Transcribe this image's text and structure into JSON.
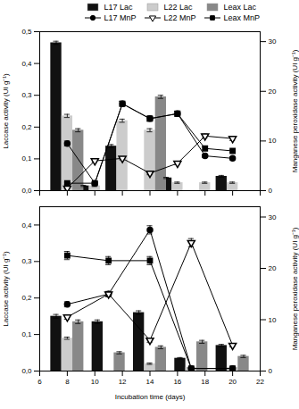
{
  "chart_data": [
    {
      "type": "bar",
      "x": [
        8,
        10,
        12,
        14,
        16,
        18,
        20
      ],
      "xlim": [
        6,
        22
      ],
      "xticks": [
        6,
        8,
        10,
        12,
        14,
        16,
        18,
        20,
        22
      ],
      "ylabel": "Laccase activity (UI g⁻¹)",
      "y2label": "Manganese peroxidase activity (UI g⁻¹)",
      "ylim": [
        0.0,
        0.5
      ],
      "yticks": [
        {
          "value": 0.0,
          "label": "0,0"
        },
        {
          "value": 0.1,
          "label": "0,1"
        },
        {
          "value": 0.2,
          "label": "0,2"
        },
        {
          "value": 0.3,
          "label": "0,3"
        },
        {
          "value": 0.4,
          "label": "0,4"
        },
        {
          "value": 0.5,
          "label": "0,5"
        }
      ],
      "y2lim": [
        0,
        32
      ],
      "y2ticks": [
        0,
        10,
        20,
        30
      ],
      "tick_labels": "y",
      "legend": "upper right",
      "series": [
        {
          "name": "L17 Lac",
          "type": "bar",
          "color": "#111111",
          "values": [
            0.465,
            0.015,
            0.14,
            0.0,
            0.04,
            0.0,
            0.045
          ],
          "errors": [
            0.005,
            0.002,
            0.005,
            0.0,
            0.002,
            0.0,
            0.003
          ]
        },
        {
          "name": "L22 Lac",
          "type": "bar",
          "color": "#cccccc",
          "values": [
            0.235,
            0.015,
            0.22,
            0.19,
            0.025,
            0.025,
            0.025
          ],
          "errors": [
            0.005,
            0.002,
            0.005,
            0.005,
            0.002,
            0.002,
            0.002
          ]
        },
        {
          "name": "Leax Lac",
          "type": "bar",
          "color": "#888888",
          "values": [
            0.19,
            0.0,
            0.0,
            0.295,
            0.0,
            0.0,
            0.0
          ],
          "errors": [
            0.005,
            0.0,
            0.0,
            0.005,
            0.0,
            0.0,
            0.0
          ]
        },
        {
          "name": "L17 MnP",
          "type": "line",
          "axis": "y2",
          "color": "black",
          "marker": "circle",
          "values": [
            9.5,
            1.5,
            17.5,
            14.5,
            15.5,
            7.0,
            6.5
          ],
          "errors": [
            0.5,
            0.2,
            0.5,
            0.5,
            0.5,
            0.3,
            0.3
          ]
        },
        {
          "name": "L22 MnP",
          "type": "line",
          "axis": "y2",
          "color": "black",
          "marker": "triangle-down-open",
          "values": [
            0.5,
            6.0,
            6.5,
            3.5,
            5.5,
            11.0,
            10.5
          ],
          "errors": [
            0.2,
            0.3,
            0.3,
            0.3,
            0.3,
            0.4,
            0.4
          ]
        },
        {
          "name": "Leax MnP",
          "type": "line",
          "axis": "y2",
          "color": "black",
          "marker": "square",
          "values": [
            1.5,
            1.5,
            17.5,
            14.5,
            15.5,
            8.5,
            8.0
          ],
          "errors": [
            0.2,
            0.2,
            0.5,
            0.5,
            0.5,
            0.3,
            0.3
          ]
        }
      ]
    },
    {
      "type": "bar",
      "x": [
        8,
        11,
        14,
        17,
        20
      ],
      "xlim": [
        6,
        22
      ],
      "xticks": [
        6,
        8,
        10,
        12,
        14,
        16,
        18,
        20,
        22
      ],
      "xlabel": "Incubation time (days)",
      "ylabel": "Laccase activity (UI g⁻¹)",
      "y2label": "Manganese peroxidase activity (UI g⁻¹)",
      "ylim": [
        0.0,
        0.45
      ],
      "yticks": [
        {
          "value": 0.0,
          "label": "0,0"
        },
        {
          "value": 0.1,
          "label": "0,1"
        },
        {
          "value": 0.2,
          "label": "0,2"
        },
        {
          "value": 0.3,
          "label": "0,3"
        },
        {
          "value": 0.4,
          "label": "0,4"
        }
      ],
      "y2lim": [
        0,
        32
      ],
      "y2ticks": [
        0,
        10,
        20,
        30
      ],
      "series": [
        {
          "name": "L17 Lac",
          "type": "bar",
          "color": "#111111",
          "values": [
            0.15,
            0.135,
            0.16,
            0.035,
            0.07
          ],
          "errors": [
            0.005,
            0.005,
            0.005,
            0.002,
            0.003
          ]
        },
        {
          "name": "L22 Lac",
          "type": "bar",
          "color": "#cccccc",
          "values": [
            0.09,
            0.0,
            0.02,
            0.01,
            0.01
          ],
          "errors": [
            0.003,
            0.0,
            0.002,
            0.001,
            0.001
          ]
        },
        {
          "name": "Leax Lac",
          "type": "bar",
          "color": "#888888",
          "values": [
            0.135,
            0.05,
            0.065,
            0.08,
            0.04
          ],
          "errors": [
            0.005,
            0.003,
            0.004,
            0.004,
            0.003
          ]
        },
        {
          "name": "L17 MnP",
          "type": "line",
          "axis": "y2",
          "color": "black",
          "marker": "circle",
          "values": [
            13.0,
            15.0,
            27.5,
            0.5,
            0.5
          ],
          "errors": [
            0.5,
            0.5,
            0.8,
            0.1,
            0.1
          ]
        },
        {
          "name": "L22 MnP",
          "type": "line",
          "axis": "y2",
          "color": "black",
          "marker": "triangle-down-open",
          "values": [
            10.5,
            15.0,
            6.0,
            25.0,
            5.0
          ],
          "errors": [
            0.4,
            0.5,
            0.4,
            0.8,
            0.3
          ]
        },
        {
          "name": "Leax MnP",
          "type": "line",
          "axis": "y2",
          "color": "black",
          "marker": "square",
          "values": [
            22.5,
            21.5,
            21.5,
            0.5,
            0.5
          ],
          "errors": [
            0.8,
            0.8,
            0.8,
            0.1,
            0.1
          ]
        }
      ]
    }
  ]
}
